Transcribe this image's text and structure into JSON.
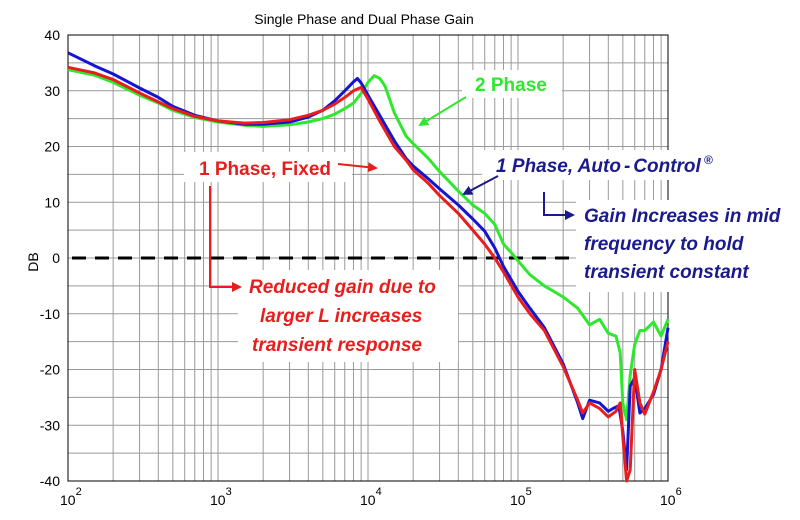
{
  "chart_data": {
    "type": "line",
    "title": "Single Phase and Dual Phase Gain",
    "xlabel": "",
    "ylabel": "DB",
    "xscale": "log",
    "xlim": [
      100,
      1000000
    ],
    "ylim": [
      -40,
      40
    ],
    "x_ticks": [
      {
        "base": "10",
        "exp": "2"
      },
      {
        "base": "10",
        "exp": "3"
      },
      {
        "base": "10",
        "exp": "4"
      },
      {
        "base": "10",
        "exp": "5"
      },
      {
        "base": "10",
        "exp": "6"
      }
    ],
    "y_ticks": [
      "40",
      "30",
      "20",
      "10",
      "0",
      "-10",
      "-20",
      "-30",
      "-40"
    ],
    "grid": true,
    "reference_line": {
      "y": 0,
      "style": "dashed",
      "color": "#000000"
    },
    "series": [
      {
        "color": "#1414d2",
        "points": [
          [
            100,
            36.8
          ],
          [
            150,
            34.5
          ],
          [
            200,
            33.0
          ],
          [
            300,
            30.5
          ],
          [
            400,
            28.8
          ],
          [
            500,
            27.2
          ],
          [
            700,
            25.6
          ],
          [
            1000,
            24.6
          ],
          [
            1500,
            24.0
          ],
          [
            2000,
            24.0
          ],
          [
            3000,
            24.4
          ],
          [
            4000,
            25.3
          ],
          [
            5000,
            26.5
          ],
          [
            6000,
            28.2
          ],
          [
            7000,
            30.0
          ],
          [
            8000,
            31.6
          ],
          [
            8500,
            32.2
          ],
          [
            9000,
            31.4
          ],
          [
            10000,
            29.2
          ],
          [
            12000,
            25.5
          ],
          [
            15000,
            21.0
          ],
          [
            18000,
            17.8
          ],
          [
            20000,
            16.5
          ],
          [
            25000,
            14.3
          ],
          [
            30000,
            12.4
          ],
          [
            40000,
            9.5
          ],
          [
            50000,
            7.0
          ],
          [
            60000,
            4.8
          ],
          [
            70000,
            1.8
          ],
          [
            80000,
            -1.5
          ],
          [
            100000,
            -6.0
          ],
          [
            120000,
            -9.0
          ],
          [
            150000,
            -12.5
          ],
          [
            200000,
            -19.0
          ],
          [
            250000,
            -26.0
          ],
          [
            270000,
            -28.8
          ],
          [
            300000,
            -25.5
          ],
          [
            350000,
            -26.0
          ],
          [
            400000,
            -27.5
          ],
          [
            430000,
            -27.0
          ],
          [
            470000,
            -26.5
          ],
          [
            500000,
            -31.0
          ],
          [
            530000,
            -38.0
          ],
          [
            560000,
            -23.0
          ],
          [
            600000,
            -21.5
          ],
          [
            650000,
            -27.8
          ],
          [
            700000,
            -27.0
          ],
          [
            800000,
            -24.5
          ],
          [
            900000,
            -20.0
          ],
          [
            1000000,
            -12.5
          ]
        ]
      },
      {
        "color": "#e81e1e",
        "points": [
          [
            100,
            34.2
          ],
          [
            150,
            33.2
          ],
          [
            200,
            32.0
          ],
          [
            300,
            29.6
          ],
          [
            400,
            28.0
          ],
          [
            500,
            26.8
          ],
          [
            700,
            25.4
          ],
          [
            1000,
            24.6
          ],
          [
            1500,
            24.2
          ],
          [
            2000,
            24.3
          ],
          [
            3000,
            24.8
          ],
          [
            4000,
            25.6
          ],
          [
            5000,
            26.5
          ],
          [
            6000,
            27.6
          ],
          [
            7000,
            28.8
          ],
          [
            8000,
            30.0
          ],
          [
            9000,
            30.6
          ],
          [
            10000,
            28.5
          ],
          [
            12000,
            24.5
          ],
          [
            15000,
            20.0
          ],
          [
            18000,
            17.5
          ],
          [
            20000,
            15.8
          ],
          [
            25000,
            13.5
          ],
          [
            30000,
            11.2
          ],
          [
            40000,
            8.0
          ],
          [
            50000,
            5.0
          ],
          [
            60000,
            2.5
          ],
          [
            70000,
            0.0
          ],
          [
            80000,
            -2.5
          ],
          [
            100000,
            -7.0
          ],
          [
            120000,
            -10.0
          ],
          [
            150000,
            -13.0
          ],
          [
            200000,
            -19.5
          ],
          [
            250000,
            -25.5
          ],
          [
            270000,
            -27.8
          ],
          [
            300000,
            -26.0
          ],
          [
            350000,
            -27.0
          ],
          [
            400000,
            -28.5
          ],
          [
            450000,
            -27.5
          ],
          [
            480000,
            -26.0
          ],
          [
            500000,
            -32.0
          ],
          [
            530000,
            -40.0
          ],
          [
            560000,
            -38.0
          ],
          [
            600000,
            -20.0
          ],
          [
            650000,
            -26.0
          ],
          [
            700000,
            -28.0
          ],
          [
            800000,
            -24.0
          ],
          [
            900000,
            -20.0
          ],
          [
            1000000,
            -15.0
          ]
        ]
      },
      {
        "color": "#2ee82e",
        "points": [
          [
            100,
            33.8
          ],
          [
            150,
            32.8
          ],
          [
            200,
            31.5
          ],
          [
            300,
            29.2
          ],
          [
            400,
            27.8
          ],
          [
            500,
            26.5
          ],
          [
            700,
            25.2
          ],
          [
            1000,
            24.4
          ],
          [
            1500,
            23.8
          ],
          [
            2000,
            23.6
          ],
          [
            3000,
            23.9
          ],
          [
            4000,
            24.4
          ],
          [
            5000,
            25.0
          ],
          [
            6000,
            25.8
          ],
          [
            7000,
            26.8
          ],
          [
            8000,
            27.8
          ],
          [
            9000,
            29.5
          ],
          [
            10000,
            31.5
          ],
          [
            11000,
            32.7
          ],
          [
            12000,
            32.2
          ],
          [
            13000,
            30.8
          ],
          [
            15000,
            26.0
          ],
          [
            18000,
            21.8
          ],
          [
            20000,
            20.5
          ],
          [
            25000,
            18.0
          ],
          [
            30000,
            15.5
          ],
          [
            40000,
            12.0
          ],
          [
            50000,
            9.5
          ],
          [
            60000,
            8.0
          ],
          [
            70000,
            6.0
          ],
          [
            80000,
            2.5
          ],
          [
            90000,
            1.0
          ],
          [
            100000,
            -0.5
          ],
          [
            120000,
            -3.0
          ],
          [
            150000,
            -5.0
          ],
          [
            200000,
            -7.0
          ],
          [
            250000,
            -9.0
          ],
          [
            300000,
            -12.0
          ],
          [
            350000,
            -11.0
          ],
          [
            400000,
            -13.5
          ],
          [
            450000,
            -14.0
          ],
          [
            480000,
            -17.0
          ],
          [
            500000,
            -26.0
          ],
          [
            530000,
            -29.0
          ],
          [
            560000,
            -21.0
          ],
          [
            600000,
            -15.5
          ],
          [
            650000,
            -13.0
          ],
          [
            700000,
            -13.0
          ],
          [
            800000,
            -11.5
          ],
          [
            900000,
            -14.0
          ],
          [
            1000000,
            -11.0
          ]
        ]
      }
    ],
    "annotations": {
      "two_phase": "2 Phase",
      "one_phase_fixed": "1 Phase, Fixed",
      "one_phase_auto": "1 Phase, Auto",
      "one_phase_auto_dash": "-",
      "one_phase_auto_tail": "Control",
      "registered": "®",
      "gain_increase_line1": "Gain Increases in mid",
      "gain_increase_line2": "frequency to hold",
      "gain_increase_line3": "transient constant",
      "reduced_gain_line1": "Reduced gain due to",
      "reduced_gain_line2": "larger L increases",
      "reduced_gain_line3": "transient response"
    },
    "colors": {
      "two_phase": "#2ee82e",
      "one_phase_fixed": "#e81e1e",
      "one_phase_auto": "#1a1a8c",
      "grid": "#9a9a9a"
    }
  }
}
